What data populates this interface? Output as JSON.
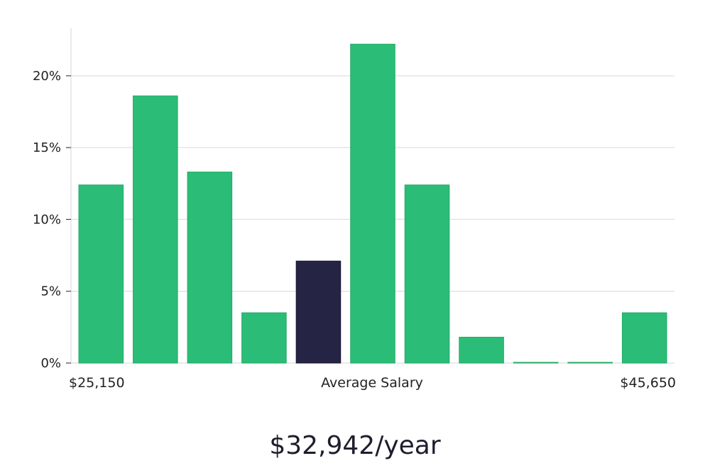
{
  "chart_data": {
    "type": "bar",
    "values": [
      12.4,
      18.6,
      13.3,
      3.5,
      7.1,
      22.2,
      12.4,
      1.8,
      0.05,
      0.05,
      3.5
    ],
    "highlight_index": 4,
    "ylim": [
      0,
      23.3
    ],
    "y_ticks": [
      0,
      5,
      10,
      15,
      20
    ],
    "y_tick_labels": [
      "0%",
      "5%",
      "10%",
      "15%",
      "20%"
    ],
    "grid": true,
    "x_labels": {
      "min": "$25,150",
      "center": "Average Salary",
      "max": "$45,650"
    },
    "colors": {
      "bar": "#2bbd77",
      "highlight": "#262444",
      "grid": "#e4e4e4",
      "axis": "#dddddd"
    }
  },
  "summary": "$32,942/year"
}
